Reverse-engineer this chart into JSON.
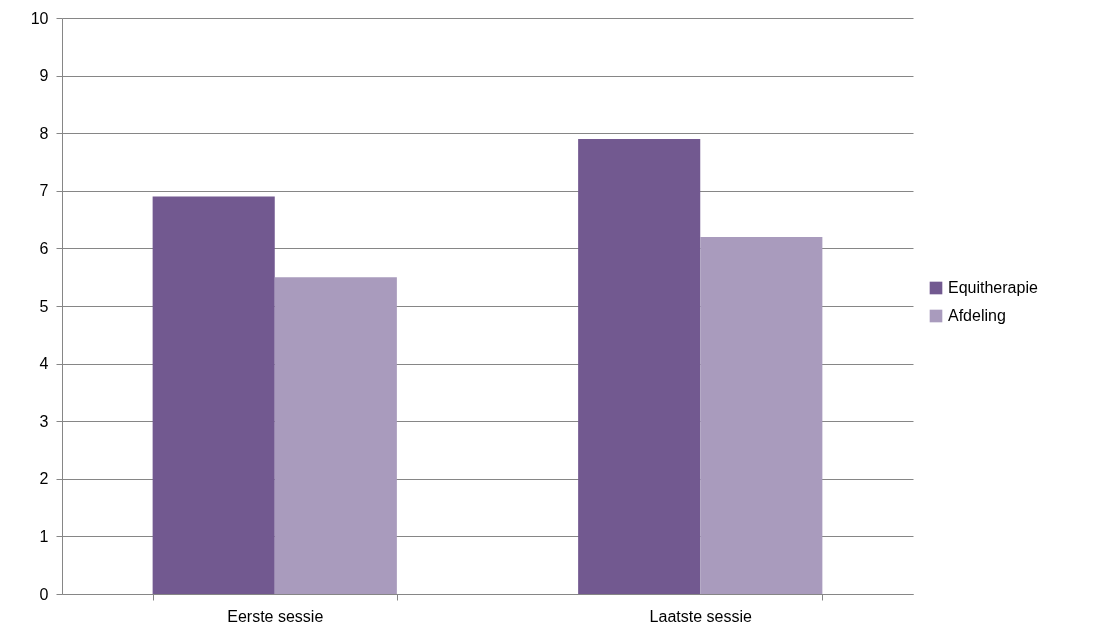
{
  "chart_data": {
    "type": "bar",
    "categories": [
      "Eerste sessie",
      "Laatste sessie"
    ],
    "series": [
      {
        "name": "Equitherapie",
        "color": "#725990",
        "values": [
          6.9,
          7.9
        ]
      },
      {
        "name": "Afdeling",
        "color": "#a99bbd",
        "values": [
          5.5,
          6.2
        ]
      }
    ],
    "ylim": [
      0,
      10
    ],
    "yticks": [
      0,
      1,
      2,
      3,
      4,
      5,
      6,
      7,
      8,
      9,
      10
    ],
    "grid": "y",
    "legend": "right"
  }
}
